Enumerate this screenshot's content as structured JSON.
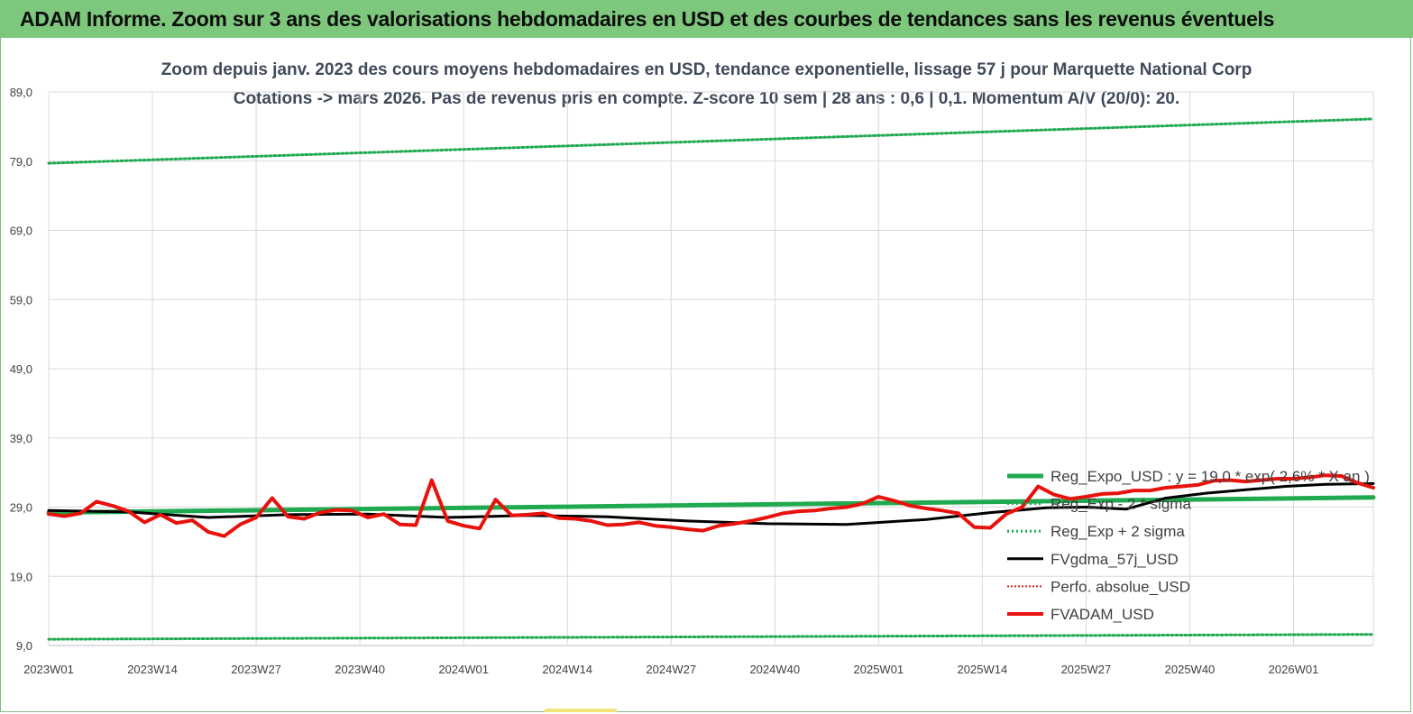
{
  "banner": {
    "title": "ADAM Informe. Zoom sur 3 ans des valorisations hebdomadaires en USD et des courbes de tendances sans les revenus éventuels"
  },
  "colors": {
    "banner": "#7dc87d",
    "trend": "#1faa4f",
    "sigma": "#1faa4f",
    "smooth": "#000000",
    "perf": "#e0201a",
    "price": "#e8120c",
    "grid": "#d9d9d9"
  },
  "chart_data": {
    "type": "line",
    "title": "Zoom depuis janv. 2023 des cours moyens hebdomadaires en USD, tendance exponentielle, lissage 57 j pour Marquette National Corp",
    "subtitle": "Cotations -> mars 2026. Pas de revenus pris en compte. Z-score 10 sem | 28 ans : 0,6 | 0,1. Momentum A/V (20/0): 20.",
    "xlabel": "",
    "ylabel": "",
    "x_ticks": [
      "2023W01",
      "2023W14",
      "2023W27",
      "2023W40",
      "2024W01",
      "2024W14",
      "2024W27",
      "2024W40",
      "2025W01",
      "2025W14",
      "2025W27",
      "2025W40",
      "2026W01"
    ],
    "y_ticks": [
      "89,0",
      "79,0",
      "69,0",
      "59,0",
      "49,0",
      "39,0",
      "29,0",
      "19,0",
      "9,0"
    ],
    "ylim": [
      9,
      89
    ],
    "x_range_weeks": [
      0,
      166
    ],
    "grid": true,
    "legend_position": "bottom-right",
    "series": [
      {
        "name": "Reg_Expo_USD : y = 19,0 * exp( 2,6% * X an )",
        "style": "solid-thick",
        "x": [
          0,
          166
        ],
        "values": [
          28.2,
          30.4
        ]
      },
      {
        "name": "Reg_Exp - 2 * sigma",
        "style": "dotted",
        "x": [
          0,
          166
        ],
        "values": [
          9.9,
          10.6
        ]
      },
      {
        "name": "Reg_Exp + 2 sigma",
        "style": "dotted",
        "x": [
          0,
          166
        ],
        "values": [
          78.7,
          85.1
        ]
      },
      {
        "name": "FVgdma_57j_USD",
        "style": "solid",
        "x": [
          0,
          10,
          20,
          30,
          40,
          50,
          60,
          70,
          80,
          90,
          100,
          110,
          118,
          125,
          130,
          135,
          140,
          145,
          150,
          155,
          160,
          166
        ],
        "values": [
          28.5,
          28.3,
          27.5,
          27.9,
          28.0,
          27.5,
          27.8,
          27.6,
          27.0,
          26.6,
          26.5,
          27.2,
          28.2,
          28.9,
          29.0,
          28.7,
          30.3,
          31.0,
          31.5,
          32.0,
          32.3,
          32.4
        ]
      },
      {
        "name": "Perfo. absolue_USD",
        "style": "dotted",
        "x": [],
        "values": []
      },
      {
        "name": "FVADAM_USD",
        "style": "solid-thick",
        "x": [
          0,
          2,
          4,
          6,
          8,
          10,
          12,
          14,
          16,
          18,
          20,
          22,
          24,
          26,
          28,
          30,
          32,
          34,
          36,
          38,
          40,
          42,
          44,
          46,
          48,
          50,
          52,
          54,
          56,
          58,
          60,
          62,
          64,
          66,
          68,
          70,
          72,
          74,
          76,
          78,
          80,
          82,
          84,
          86,
          88,
          90,
          92,
          94,
          96,
          98,
          100,
          102,
          104,
          106,
          108,
          110,
          112,
          114,
          116,
          118,
          120,
          122,
          124,
          126,
          128,
          130,
          132,
          134,
          136,
          138,
          140,
          142,
          144,
          146,
          148,
          150,
          152,
          154,
          156,
          158,
          160,
          162,
          164,
          166
        ],
        "values": [
          28.0,
          27.7,
          28.1,
          29.8,
          29.2,
          28.4,
          26.8,
          27.9,
          26.7,
          27.1,
          25.4,
          24.8,
          26.5,
          27.5,
          30.3,
          27.6,
          27.3,
          28.2,
          28.6,
          28.5,
          27.5,
          28.0,
          26.5,
          26.4,
          32.9,
          27.0,
          26.3,
          25.9,
          30.1,
          27.8,
          27.9,
          28.1,
          27.4,
          27.3,
          27.0,
          26.4,
          26.5,
          26.8,
          26.3,
          26.1,
          25.8,
          25.6,
          26.3,
          26.6,
          27.0,
          27.5,
          28.1,
          28.4,
          28.5,
          28.8,
          29.0,
          29.5,
          30.5,
          29.9,
          29.2,
          28.8,
          28.5,
          28.1,
          26.1,
          26.0,
          28.0,
          29.0,
          32.0,
          30.8,
          30.2,
          30.5,
          30.9,
          31.0,
          31.4,
          31.4,
          31.8,
          32.0,
          32.2,
          32.8,
          32.9,
          32.7,
          32.9,
          33.1,
          33.1,
          33.3,
          33.6,
          33.5,
          32.5,
          31.8
        ]
      }
    ]
  }
}
